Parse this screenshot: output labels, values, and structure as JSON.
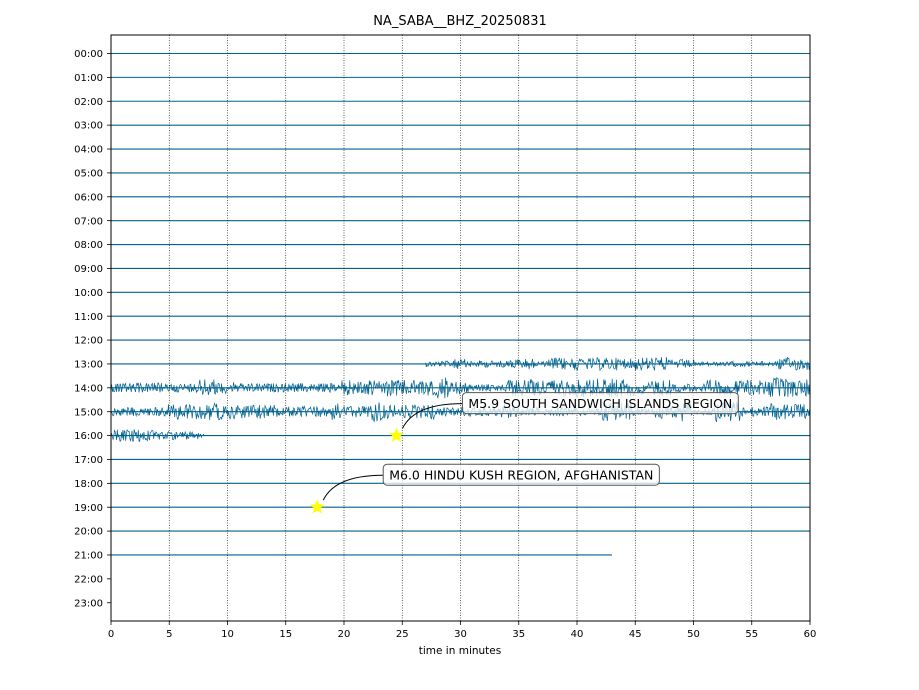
{
  "chart_data": {
    "type": "line",
    "title": "NA_SABA__BHZ_20250831",
    "xlabel": "time in minutes",
    "ylabel": "",
    "xlim": [
      0,
      60
    ],
    "x_ticks": [
      "0",
      "5",
      "10",
      "15",
      "20",
      "25",
      "30",
      "35",
      "40",
      "45",
      "50",
      "55",
      "60"
    ],
    "y_tick_labels": [
      "00:00",
      "01:00",
      "02:00",
      "03:00",
      "04:00",
      "05:00",
      "06:00",
      "07:00",
      "08:00",
      "09:00",
      "10:00",
      "11:00",
      "12:00",
      "13:00",
      "14:00",
      "15:00",
      "16:00",
      "17:00",
      "18:00",
      "19:00",
      "20:00",
      "21:00",
      "22:00",
      "23:00"
    ],
    "grid": {
      "x": true,
      "style": "dotted"
    },
    "trace_color": "#00628f",
    "trace_end_minute_21h": 43,
    "trace_activity": [
      {
        "hour": 13,
        "start_minute": 27,
        "end_minute": 60,
        "level": "moderate"
      },
      {
        "hour": 14,
        "start_minute": 0,
        "end_minute": 60,
        "level": "high"
      },
      {
        "hour": 15,
        "start_minute": 0,
        "end_minute": 60,
        "level": "high"
      },
      {
        "hour": 16,
        "start_minute": 0,
        "end_minute": 8,
        "level": "moderate"
      }
    ],
    "events": [
      {
        "label": "M5.9 SOUTH SANDWICH ISLANDS REGION",
        "hour": 16,
        "minute": 24.5,
        "marker_color": "#ffff00"
      },
      {
        "label": "M6.0 HINDU KUSH REGION, AFGHANISTAN",
        "hour": 19,
        "minute": 17.7,
        "marker_color": "#ffff00"
      }
    ]
  }
}
